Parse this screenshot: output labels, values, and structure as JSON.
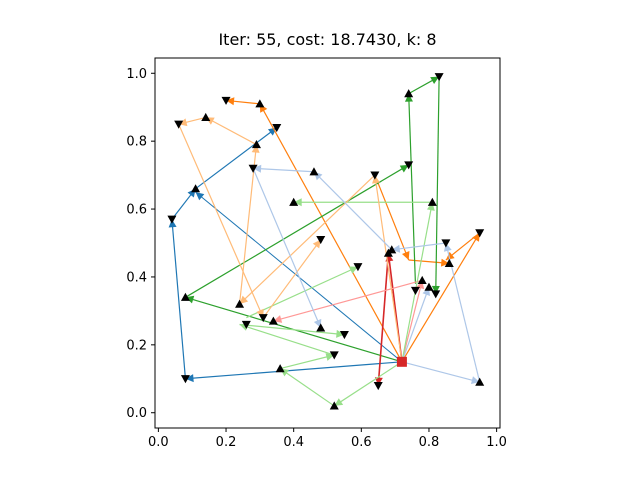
{
  "chart_data": {
    "type": "line",
    "title": "Iter: 55, cost: 18.7430, k: 8",
    "xlabel": "",
    "ylabel": "",
    "xlim": [
      -0.01,
      1.01
    ],
    "ylim": [
      -0.045,
      1.045
    ],
    "x_ticks": [
      "0.0",
      "0.2",
      "0.4",
      "0.6",
      "0.8",
      "1.0"
    ],
    "y_ticks": [
      "0.0",
      "0.2",
      "0.4",
      "0.6",
      "0.8",
      "1.0"
    ],
    "grid": false,
    "legend": "none",
    "depot": {
      "x": 0.72,
      "y": 0.15,
      "color": "#d62728"
    },
    "nodes": [
      {
        "x": 0.04,
        "y": 0.57
      },
      {
        "x": 0.08,
        "y": 0.34
      },
      {
        "x": 0.08,
        "y": 0.1
      },
      {
        "x": 0.11,
        "y": 0.66
      },
      {
        "x": 0.06,
        "y": 0.85
      },
      {
        "x": 0.14,
        "y": 0.87
      },
      {
        "x": 0.2,
        "y": 0.92
      },
      {
        "x": 0.3,
        "y": 0.91
      },
      {
        "x": 0.35,
        "y": 0.84
      },
      {
        "x": 0.29,
        "y": 0.79
      },
      {
        "x": 0.28,
        "y": 0.72
      },
      {
        "x": 0.46,
        "y": 0.71
      },
      {
        "x": 0.64,
        "y": 0.7
      },
      {
        "x": 0.4,
        "y": 0.62
      },
      {
        "x": 0.48,
        "y": 0.51
      },
      {
        "x": 0.24,
        "y": 0.32
      },
      {
        "x": 0.31,
        "y": 0.28
      },
      {
        "x": 0.34,
        "y": 0.27
      },
      {
        "x": 0.26,
        "y": 0.26
      },
      {
        "x": 0.48,
        "y": 0.25
      },
      {
        "x": 0.55,
        "y": 0.23
      },
      {
        "x": 0.36,
        "y": 0.13
      },
      {
        "x": 0.52,
        "y": 0.17
      },
      {
        "x": 0.52,
        "y": 0.02
      },
      {
        "x": 0.65,
        "y": 0.08
      },
      {
        "x": 0.68,
        "y": 0.47
      },
      {
        "x": 0.59,
        "y": 0.43
      },
      {
        "x": 0.69,
        "y": 0.48
      },
      {
        "x": 0.74,
        "y": 0.73
      },
      {
        "x": 0.74,
        "y": 0.94
      },
      {
        "x": 0.83,
        "y": 0.99
      },
      {
        "x": 0.81,
        "y": 0.62
      },
      {
        "x": 0.82,
        "y": 0.35
      },
      {
        "x": 0.78,
        "y": 0.39
      },
      {
        "x": 0.76,
        "y": 0.36
      },
      {
        "x": 0.8,
        "y": 0.37
      },
      {
        "x": 0.85,
        "y": 0.5
      },
      {
        "x": 0.86,
        "y": 0.44
      },
      {
        "x": 0.95,
        "y": 0.53
      },
      {
        "x": 0.95,
        "y": 0.09
      }
    ],
    "series": [
      {
        "color": "#1f77b4",
        "alpha": 1.0,
        "width": 1.2,
        "points": [
          [
            0.72,
            0.15
          ],
          [
            0.08,
            0.1
          ],
          [
            0.04,
            0.57
          ],
          [
            0.11,
            0.66
          ],
          [
            0.35,
            0.84
          ]
        ]
      },
      {
        "color": "#1f77b4",
        "alpha": 1.0,
        "width": 1.0,
        "points": [
          [
            0.72,
            0.15
          ],
          [
            0.11,
            0.65
          ]
        ]
      },
      {
        "color": "#ff7f0e",
        "alpha": 1.0,
        "width": 1.2,
        "points": [
          [
            0.72,
            0.15
          ],
          [
            0.3,
            0.91
          ],
          [
            0.2,
            0.92
          ]
        ]
      },
      {
        "color": "#ff7f0e",
        "alpha": 1.0,
        "width": 1.2,
        "points": [
          [
            0.72,
            0.15
          ],
          [
            0.95,
            0.53
          ],
          [
            0.85,
            0.45
          ]
        ]
      },
      {
        "color": "#ff7f0e",
        "alpha": 1.0,
        "width": 1.2,
        "points": [
          [
            0.64,
            0.7
          ],
          [
            0.74,
            0.45
          ],
          [
            0.86,
            0.44
          ]
        ]
      },
      {
        "color": "#2ca02c",
        "alpha": 1.0,
        "width": 1.2,
        "points": [
          [
            0.72,
            0.15
          ],
          [
            0.08,
            0.34
          ],
          [
            0.74,
            0.73
          ]
        ]
      },
      {
        "color": "#2ca02c",
        "alpha": 1.0,
        "width": 1.2,
        "points": [
          [
            0.76,
            0.38
          ],
          [
            0.74,
            0.94
          ],
          [
            0.83,
            0.99
          ],
          [
            0.82,
            0.35
          ]
        ]
      },
      {
        "color": "#d62728",
        "alpha": 1.0,
        "width": 1.6,
        "points": [
          [
            0.72,
            0.15
          ],
          [
            0.68,
            0.47
          ]
        ]
      },
      {
        "color": "#d62728",
        "alpha": 1.0,
        "width": 1.6,
        "points": [
          [
            0.68,
            0.47
          ],
          [
            0.65,
            0.08
          ]
        ]
      },
      {
        "color": "#ff9896",
        "alpha": 1.0,
        "width": 1.2,
        "points": [
          [
            0.72,
            0.15
          ],
          [
            0.78,
            0.39
          ],
          [
            0.34,
            0.27
          ]
        ]
      },
      {
        "color": "#98df8a",
        "alpha": 1.0,
        "width": 1.2,
        "points": [
          [
            0.72,
            0.15
          ],
          [
            0.52,
            0.02
          ],
          [
            0.36,
            0.13
          ],
          [
            0.52,
            0.17
          ],
          [
            0.24,
            0.26
          ],
          [
            0.55,
            0.23
          ]
        ]
      },
      {
        "color": "#98df8a",
        "alpha": 1.0,
        "width": 1.2,
        "points": [
          [
            0.72,
            0.15
          ],
          [
            0.81,
            0.62
          ],
          [
            0.4,
            0.62
          ]
        ]
      },
      {
        "color": "#98df8a",
        "alpha": 1.0,
        "width": 1.2,
        "points": [
          [
            0.26,
            0.28
          ],
          [
            0.59,
            0.43
          ]
        ]
      },
      {
        "color": "#ffbb78",
        "alpha": 1.0,
        "width": 1.2,
        "points": [
          [
            0.72,
            0.15
          ],
          [
            0.64,
            0.7
          ],
          [
            0.24,
            0.32
          ],
          [
            0.29,
            0.79
          ],
          [
            0.14,
            0.87
          ],
          [
            0.06,
            0.85
          ],
          [
            0.31,
            0.28
          ],
          [
            0.48,
            0.51
          ]
        ]
      },
      {
        "color": "#aec7e8",
        "alpha": 1.0,
        "width": 1.2,
        "points": [
          [
            0.72,
            0.15
          ],
          [
            0.95,
            0.09
          ],
          [
            0.85,
            0.5
          ],
          [
            0.69,
            0.48
          ],
          [
            0.46,
            0.71
          ],
          [
            0.28,
            0.72
          ],
          [
            0.48,
            0.25
          ]
        ]
      },
      {
        "color": "#aec7e8",
        "alpha": 1.0,
        "width": 1.2,
        "points": [
          [
            0.72,
            0.15
          ],
          [
            0.8,
            0.37
          ]
        ]
      }
    ]
  }
}
